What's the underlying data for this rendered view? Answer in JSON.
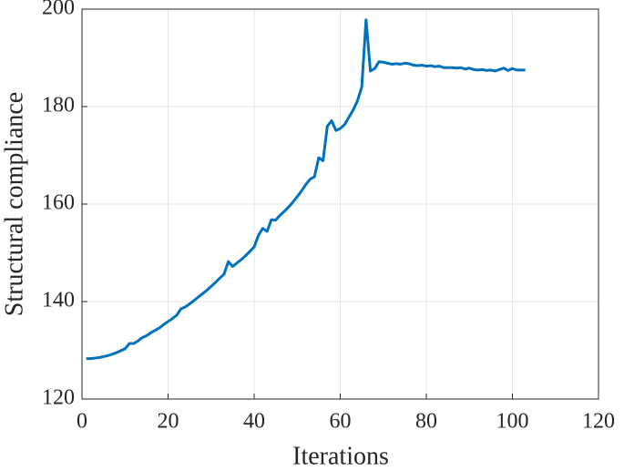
{
  "chart_data": {
    "type": "line",
    "x_label": "Iterations",
    "y_label": "Structural compliance",
    "xlim": [
      0,
      120
    ],
    "xticks": [
      0,
      20,
      40,
      60,
      80,
      100,
      120
    ],
    "ylim": [
      120,
      200
    ],
    "yticks": [
      120,
      140,
      160,
      180,
      200
    ],
    "grid": true,
    "x": [
      1,
      2,
      3,
      4,
      5,
      6,
      7,
      8,
      9,
      10,
      11,
      12,
      13,
      14,
      15,
      16,
      17,
      18,
      19,
      20,
      21,
      22,
      23,
      24,
      25,
      26,
      27,
      28,
      29,
      30,
      31,
      32,
      33,
      34,
      35,
      36,
      37,
      38,
      39,
      40,
      41,
      42,
      43,
      44,
      45,
      46,
      47,
      48,
      49,
      50,
      51,
      52,
      53,
      54,
      55,
      56,
      57,
      58,
      59,
      60,
      61,
      62,
      63,
      64,
      65,
      66,
      67,
      68,
      69,
      70,
      71,
      72,
      73,
      74,
      75,
      76,
      77,
      78,
      79,
      80,
      81,
      82,
      83,
      84,
      85,
      86,
      87,
      88,
      89,
      90,
      91,
      92,
      93,
      94,
      95,
      96,
      97,
      98,
      99,
      100,
      101,
      102,
      103
    ],
    "series": [
      {
        "color": "#0072bd",
        "values": [
          128.3,
          128.3,
          128.4,
          128.5,
          128.7,
          128.9,
          129.2,
          129.5,
          129.9,
          130.3,
          131.4,
          131.4,
          131.9,
          132.6,
          133.0,
          133.6,
          134.1,
          134.6,
          135.3,
          135.9,
          136.5,
          137.2,
          138.5,
          138.9,
          139.5,
          140.2,
          140.9,
          141.6,
          142.3,
          143.1,
          143.9,
          144.8,
          145.6,
          148.2,
          147.2,
          147.9,
          148.6,
          149.4,
          150.3,
          151.2,
          153.6,
          155.0,
          154.4,
          156.8,
          156.7,
          157.7,
          158.5,
          159.4,
          160.4,
          161.5,
          162.7,
          164.0,
          165.1,
          165.6,
          169.5,
          168.9,
          176.0,
          177.1,
          175.1,
          175.5,
          176.3,
          177.8,
          179.3,
          181.2,
          184.0,
          197.8,
          187.3,
          187.8,
          189.2,
          189.1,
          188.9,
          188.7,
          188.8,
          188.7,
          188.9,
          188.8,
          188.5,
          188.4,
          188.5,
          188.3,
          188.4,
          188.2,
          188.3,
          188.0,
          188.0,
          188.0,
          187.9,
          188.0,
          187.7,
          187.9,
          187.6,
          187.5,
          187.6,
          187.4,
          187.5,
          187.3,
          187.6,
          187.9,
          187.4,
          187.8,
          187.5,
          187.5,
          187.5
        ]
      }
    ]
  }
}
